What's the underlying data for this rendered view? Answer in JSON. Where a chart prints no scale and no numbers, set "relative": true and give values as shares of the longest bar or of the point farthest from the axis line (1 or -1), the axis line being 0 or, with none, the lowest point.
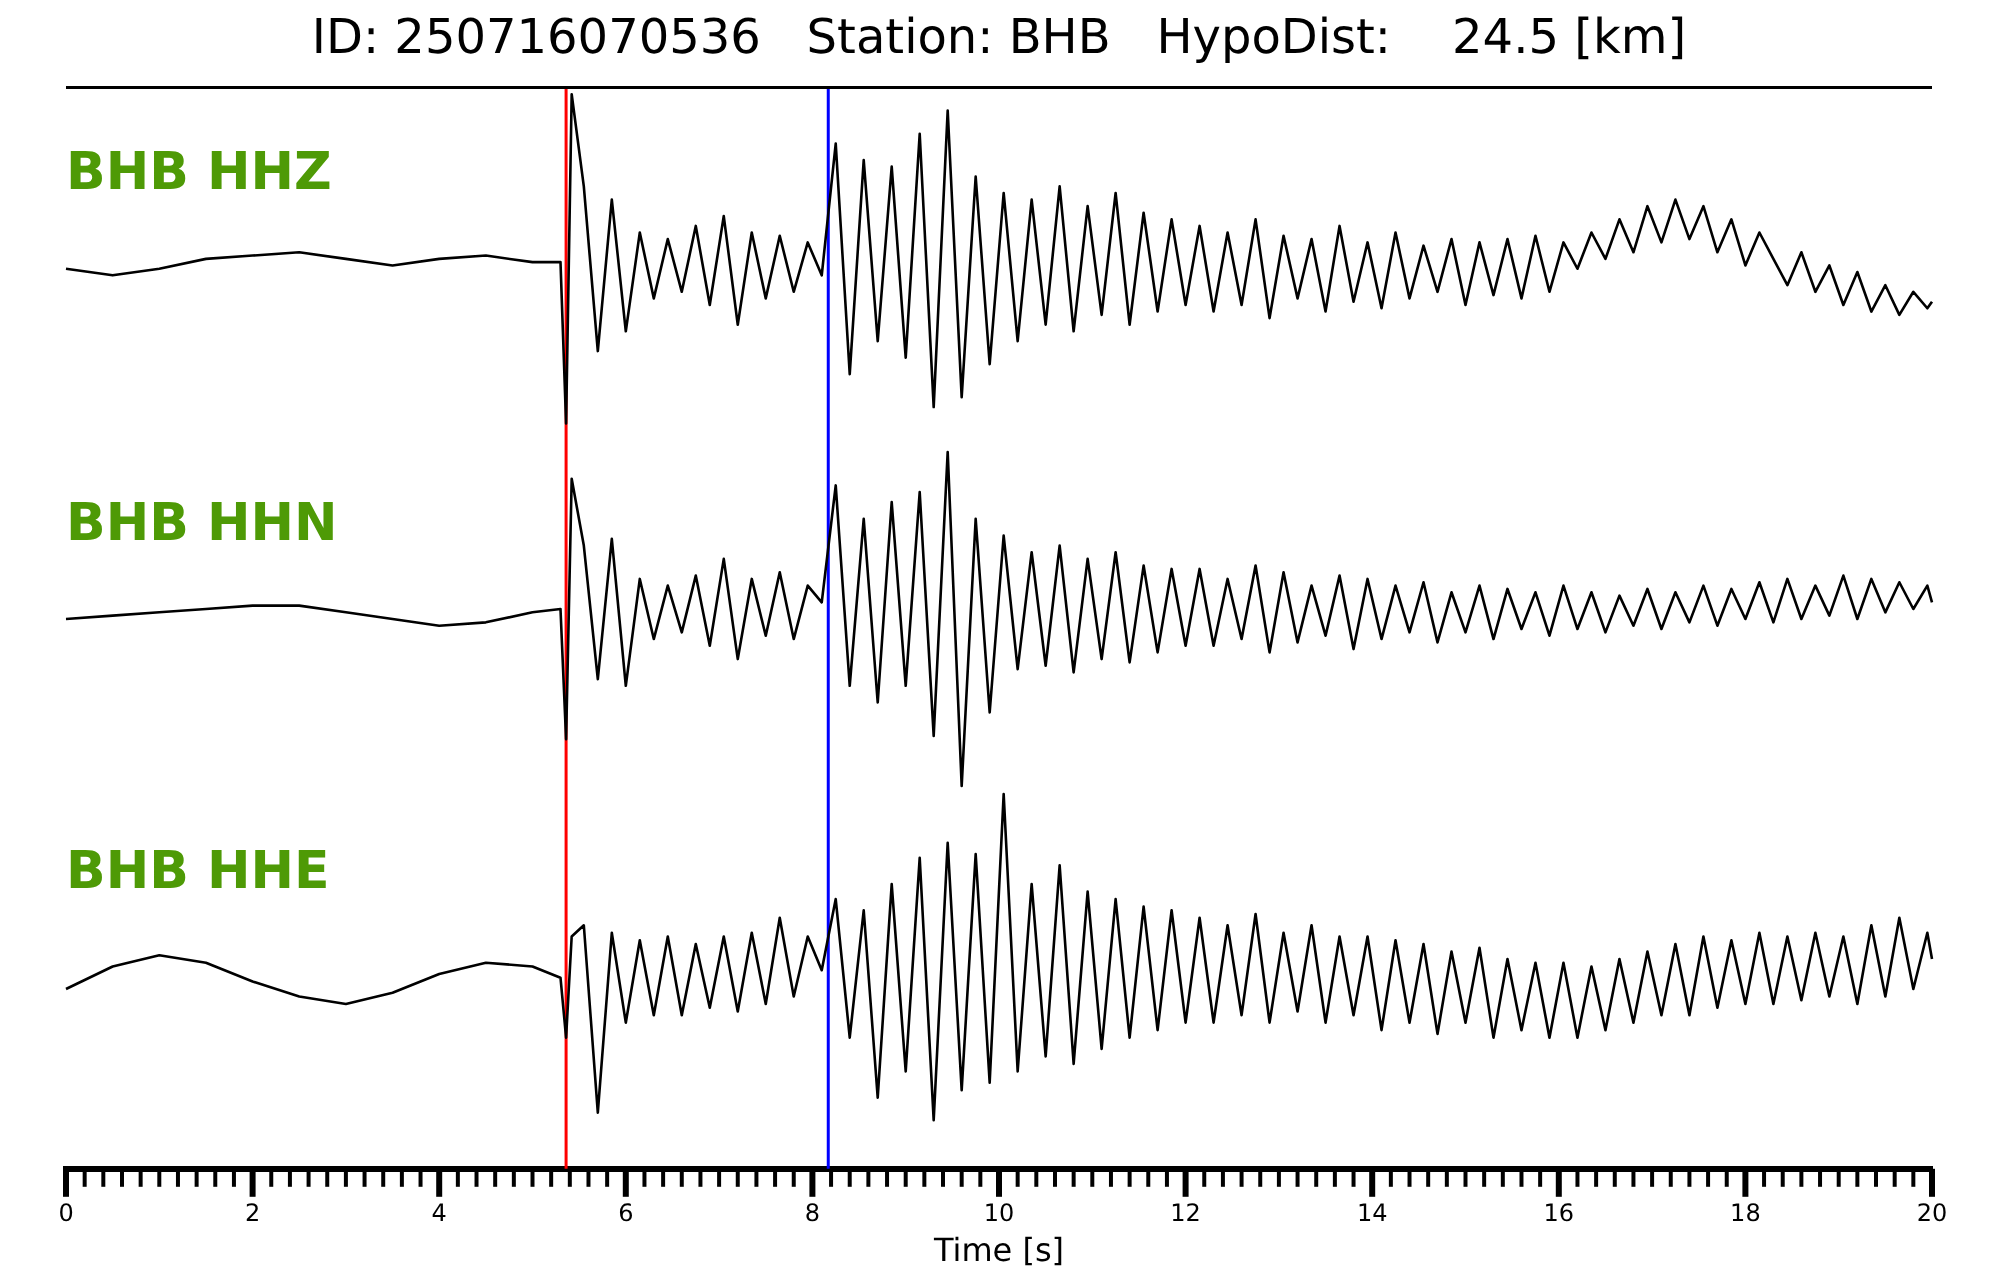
{
  "chart_data": [
    {
      "type": "line",
      "title": "ID: 250716070536   Station: BHB   HypoDist:    24.5 [km]",
      "relative": true,
      "xlim": [
        0,
        20
      ],
      "tick_labels": false,
      "x": [
        0,
        0.5,
        1,
        1.5,
        2,
        2.5,
        3,
        3.5,
        4,
        4.5,
        5,
        5.3,
        5.36,
        5.42,
        5.55,
        5.7,
        5.85,
        6,
        6.15,
        6.3,
        6.45,
        6.6,
        6.75,
        6.9,
        7.05,
        7.2,
        7.35,
        7.5,
        7.65,
        7.8,
        7.95,
        8.1,
        8.25,
        8.4,
        8.55,
        8.7,
        8.85,
        9,
        9.15,
        9.3,
        9.45,
        9.6,
        9.75,
        9.9,
        10.05,
        10.2,
        10.35,
        10.5,
        10.65,
        10.8,
        10.95,
        11.1,
        11.25,
        11.4,
        11.55,
        11.7,
        11.85,
        12,
        12.15,
        12.3,
        12.45,
        12.6,
        12.75,
        12.9,
        13.05,
        13.2,
        13.35,
        13.5,
        13.65,
        13.8,
        13.95,
        14.1,
        14.25,
        14.4,
        14.55,
        14.7,
        14.85,
        15,
        15.15,
        15.3,
        15.45,
        15.6,
        15.75,
        15.9,
        16.05,
        16.2,
        16.35,
        16.5,
        16.65,
        16.8,
        16.95,
        17.1,
        17.25,
        17.4,
        17.55,
        17.7,
        17.85,
        18,
        18.15,
        18.3,
        18.45,
        18.6,
        18.75,
        18.9,
        19.05,
        19.2,
        19.35,
        19.5,
        19.65,
        19.8,
        19.95,
        20
      ],
      "series": [
        {
          "name": "BHB HHZ",
          "color": "#000000",
          "values": [
            0.47,
            0.45,
            0.47,
            0.5,
            0.51,
            0.52,
            0.5,
            0.48,
            0.5,
            0.51,
            0.49,
            0.49,
            0.0,
            1.0,
            0.72,
            0.22,
            0.68,
            0.28,
            0.58,
            0.38,
            0.56,
            0.4,
            0.6,
            0.36,
            0.63,
            0.3,
            0.58,
            0.38,
            0.57,
            0.4,
            0.55,
            0.45,
            0.85,
            0.15,
            0.8,
            0.25,
            0.78,
            0.2,
            0.88,
            0.05,
            0.95,
            0.08,
            0.75,
            0.18,
            0.7,
            0.25,
            0.68,
            0.3,
            0.72,
            0.28,
            0.66,
            0.33,
            0.7,
            0.3,
            0.64,
            0.34,
            0.62,
            0.36,
            0.6,
            0.34,
            0.58,
            0.36,
            0.62,
            0.32,
            0.57,
            0.38,
            0.56,
            0.34,
            0.6,
            0.37,
            0.55,
            0.35,
            0.58,
            0.38,
            0.54,
            0.4,
            0.56,
            0.36,
            0.55,
            0.39,
            0.56,
            0.38,
            0.57,
            0.4,
            0.55,
            0.47,
            0.58,
            0.5,
            0.62,
            0.52,
            0.66,
            0.55,
            0.68,
            0.56,
            0.66,
            0.52,
            0.62,
            0.48,
            0.58,
            0.5,
            0.42,
            0.52,
            0.4,
            0.48,
            0.36,
            0.46,
            0.34,
            0.42,
            0.33,
            0.4,
            0.35,
            0.37
          ]
        }
      ],
      "ref_lines": [
        {
          "axis": "x",
          "value": 5.36,
          "color": "#ff0000"
        },
        {
          "axis": "x",
          "value": 8.17,
          "color": "#0000ff"
        }
      ]
    },
    {
      "type": "line",
      "relative": true,
      "xlim": [
        0,
        20
      ],
      "tick_labels": false,
      "x": [
        0,
        0.5,
        1,
        1.5,
        2,
        2.5,
        3,
        3.5,
        4,
        4.5,
        5,
        5.3,
        5.36,
        5.42,
        5.55,
        5.7,
        5.85,
        6,
        6.15,
        6.3,
        6.45,
        6.6,
        6.75,
        6.9,
        7.05,
        7.2,
        7.35,
        7.5,
        7.65,
        7.8,
        7.95,
        8.1,
        8.25,
        8.4,
        8.55,
        8.7,
        8.85,
        9,
        9.15,
        9.3,
        9.45,
        9.6,
        9.75,
        9.9,
        10.05,
        10.2,
        10.35,
        10.5,
        10.65,
        10.8,
        10.95,
        11.1,
        11.25,
        11.4,
        11.55,
        11.7,
        11.85,
        12,
        12.15,
        12.3,
        12.45,
        12.6,
        12.75,
        12.9,
        13.05,
        13.2,
        13.35,
        13.5,
        13.65,
        13.8,
        13.95,
        14.1,
        14.25,
        14.4,
        14.55,
        14.7,
        14.85,
        15,
        15.15,
        15.3,
        15.45,
        15.6,
        15.75,
        15.9,
        16.05,
        16.2,
        16.35,
        16.5,
        16.65,
        16.8,
        16.95,
        17.1,
        17.25,
        17.4,
        17.55,
        17.7,
        17.85,
        18,
        18.15,
        18.3,
        18.45,
        18.6,
        18.75,
        18.9,
        19.05,
        19.2,
        19.35,
        19.5,
        19.65,
        19.8,
        19.95,
        20
      ],
      "series": [
        {
          "name": "BHB HHN",
          "color": "#000000",
          "values": [
            0.5,
            0.51,
            0.52,
            0.53,
            0.54,
            0.54,
            0.52,
            0.5,
            0.48,
            0.49,
            0.52,
            0.53,
            0.14,
            0.92,
            0.72,
            0.32,
            0.74,
            0.3,
            0.62,
            0.44,
            0.6,
            0.46,
            0.63,
            0.42,
            0.68,
            0.38,
            0.62,
            0.45,
            0.64,
            0.44,
            0.6,
            0.55,
            0.9,
            0.3,
            0.8,
            0.25,
            0.85,
            0.3,
            0.88,
            0.15,
            1.0,
            0.0,
            0.8,
            0.22,
            0.75,
            0.35,
            0.7,
            0.36,
            0.72,
            0.34,
            0.68,
            0.38,
            0.7,
            0.37,
            0.66,
            0.4,
            0.65,
            0.42,
            0.65,
            0.42,
            0.62,
            0.44,
            0.66,
            0.4,
            0.64,
            0.43,
            0.6,
            0.45,
            0.63,
            0.41,
            0.62,
            0.44,
            0.6,
            0.46,
            0.61,
            0.43,
            0.58,
            0.46,
            0.6,
            0.44,
            0.59,
            0.47,
            0.58,
            0.45,
            0.6,
            0.47,
            0.58,
            0.46,
            0.57,
            0.48,
            0.59,
            0.47,
            0.58,
            0.49,
            0.6,
            0.48,
            0.59,
            0.5,
            0.61,
            0.49,
            0.62,
            0.5,
            0.6,
            0.51,
            0.63,
            0.5,
            0.62,
            0.52,
            0.61,
            0.53,
            0.6,
            0.55
          ]
        }
      ],
      "ref_lines": [
        {
          "axis": "x",
          "value": 5.36,
          "color": "#ff0000"
        },
        {
          "axis": "x",
          "value": 8.17,
          "color": "#0000ff"
        }
      ]
    },
    {
      "type": "line",
      "relative": true,
      "xlabel": "Time [s]",
      "xlim": [
        0,
        20
      ],
      "tick_labels": "x",
      "xticks": [
        0,
        {
          "value": 0.2,
          "label": null
        },
        {
          "value": 0.4,
          "label": null
        },
        {
          "value": 0.6,
          "label": null
        },
        {
          "value": 0.8,
          "label": null
        },
        {
          "value": 1,
          "label": null
        },
        {
          "value": 1.2,
          "label": null
        },
        {
          "value": 1.4,
          "label": null
        },
        {
          "value": 1.6,
          "label": null
        },
        {
          "value": 1.8,
          "label": null
        },
        2,
        {
          "value": 2.2,
          "label": null
        },
        {
          "value": 2.4,
          "label": null
        },
        {
          "value": 2.6,
          "label": null
        },
        {
          "value": 2.8,
          "label": null
        },
        {
          "value": 3,
          "label": null
        },
        {
          "value": 3.2,
          "label": null
        },
        {
          "value": 3.4,
          "label": null
        },
        {
          "value": 3.6,
          "label": null
        },
        {
          "value": 3.8,
          "label": null
        },
        4,
        {
          "value": 4.2,
          "label": null
        },
        {
          "value": 4.4,
          "label": null
        },
        {
          "value": 4.6,
          "label": null
        },
        {
          "value": 4.8,
          "label": null
        },
        {
          "value": 5,
          "label": null
        },
        {
          "value": 5.2,
          "label": null
        },
        {
          "value": 5.4,
          "label": null
        },
        {
          "value": 5.6,
          "label": null
        },
        {
          "value": 5.8,
          "label": null
        },
        6,
        {
          "value": 6.2,
          "label": null
        },
        {
          "value": 6.4,
          "label": null
        },
        {
          "value": 6.6,
          "label": null
        },
        {
          "value": 6.8,
          "label": null
        },
        {
          "value": 7,
          "label": null
        },
        {
          "value": 7.2,
          "label": null
        },
        {
          "value": 7.4,
          "label": null
        },
        {
          "value": 7.6,
          "label": null
        },
        {
          "value": 7.8,
          "label": null
        },
        8,
        {
          "value": 8.2,
          "label": null
        },
        {
          "value": 8.4,
          "label": null
        },
        {
          "value": 8.6,
          "label": null
        },
        {
          "value": 8.8,
          "label": null
        },
        {
          "value": 9,
          "label": null
        },
        {
          "value": 9.2,
          "label": null
        },
        {
          "value": 9.4,
          "label": null
        },
        {
          "value": 9.6,
          "label": null
        },
        {
          "value": 9.8,
          "label": null
        },
        10,
        {
          "value": 10.2,
          "label": null
        },
        {
          "value": 10.4,
          "label": null
        },
        {
          "value": 10.6,
          "label": null
        },
        {
          "value": 10.8,
          "label": null
        },
        {
          "value": 11,
          "label": null
        },
        {
          "value": 11.2,
          "label": null
        },
        {
          "value": 11.4,
          "label": null
        },
        {
          "value": 11.6,
          "label": null
        },
        {
          "value": 11.8,
          "label": null
        },
        12,
        {
          "value": 12.2,
          "label": null
        },
        {
          "value": 12.4,
          "label": null
        },
        {
          "value": 12.6,
          "label": null
        },
        {
          "value": 12.8,
          "label": null
        },
        {
          "value": 13,
          "label": null
        },
        {
          "value": 13.2,
          "label": null
        },
        {
          "value": 13.4,
          "label": null
        },
        {
          "value": 13.6,
          "label": null
        },
        {
          "value": 13.8,
          "label": null
        },
        14,
        {
          "value": 14.2,
          "label": null
        },
        {
          "value": 14.4,
          "label": null
        },
        {
          "value": 14.6,
          "label": null
        },
        {
          "value": 14.8,
          "label": null
        },
        {
          "value": 15,
          "label": null
        },
        {
          "value": 15.2,
          "label": null
        },
        {
          "value": 15.4,
          "label": null
        },
        {
          "value": 15.6,
          "label": null
        },
        {
          "value": 15.8,
          "label": null
        },
        16,
        {
          "value": 16.2,
          "label": null
        },
        {
          "value": 16.4,
          "label": null
        },
        {
          "value": 16.6,
          "label": null
        },
        {
          "value": 16.8,
          "label": null
        },
        {
          "value": 17,
          "label": null
        },
        {
          "value": 17.2,
          "label": null
        },
        {
          "value": 17.4,
          "label": null
        },
        {
          "value": 17.6,
          "label": null
        },
        {
          "value": 17.8,
          "label": null
        },
        18,
        {
          "value": 18.2,
          "label": null
        },
        {
          "value": 18.4,
          "label": null
        },
        {
          "value": 18.6,
          "label": null
        },
        {
          "value": 18.8,
          "label": null
        },
        {
          "value": 19,
          "label": null
        },
        {
          "value": 19.2,
          "label": null
        },
        {
          "value": 19.4,
          "label": null
        },
        {
          "value": 19.6,
          "label": null
        },
        {
          "value": 19.8,
          "label": null
        },
        20
      ],
      "x": [
        0,
        0.5,
        1,
        1.5,
        2,
        2.5,
        3,
        3.5,
        4,
        4.5,
        5,
        5.3,
        5.36,
        5.42,
        5.55,
        5.7,
        5.85,
        6,
        6.15,
        6.3,
        6.45,
        6.6,
        6.75,
        6.9,
        7.05,
        7.2,
        7.35,
        7.5,
        7.65,
        7.8,
        7.95,
        8.1,
        8.25,
        8.4,
        8.55,
        8.7,
        8.85,
        9,
        9.15,
        9.3,
        9.45,
        9.6,
        9.75,
        9.9,
        10.05,
        10.2,
        10.35,
        10.5,
        10.65,
        10.8,
        10.95,
        11.1,
        11.25,
        11.4,
        11.55,
        11.7,
        11.85,
        12,
        12.15,
        12.3,
        12.45,
        12.6,
        12.75,
        12.9,
        13.05,
        13.2,
        13.35,
        13.5,
        13.65,
        13.8,
        13.95,
        14.1,
        14.25,
        14.4,
        14.55,
        14.7,
        14.85,
        15,
        15.15,
        15.3,
        15.45,
        15.6,
        15.75,
        15.9,
        16.05,
        16.2,
        16.35,
        16.5,
        16.65,
        16.8,
        16.95,
        17.1,
        17.25,
        17.4,
        17.55,
        17.7,
        17.85,
        18,
        18.15,
        18.3,
        18.45,
        18.6,
        18.75,
        18.9,
        19.05,
        19.2,
        19.35,
        19.5,
        19.65,
        19.8,
        19.95,
        20
      ],
      "series": [
        {
          "name": "BHB HHE",
          "color": "#000000",
          "values": [
            0.48,
            0.54,
            0.57,
            0.55,
            0.5,
            0.46,
            0.44,
            0.47,
            0.52,
            0.55,
            0.54,
            0.51,
            0.35,
            0.62,
            0.65,
            0.15,
            0.63,
            0.39,
            0.61,
            0.41,
            0.62,
            0.41,
            0.6,
            0.43,
            0.62,
            0.42,
            0.63,
            0.44,
            0.67,
            0.46,
            0.62,
            0.53,
            0.72,
            0.35,
            0.69,
            0.19,
            0.76,
            0.26,
            0.83,
            0.13,
            0.87,
            0.21,
            0.84,
            0.23,
            1.0,
            0.26,
            0.76,
            0.3,
            0.81,
            0.28,
            0.74,
            0.32,
            0.72,
            0.35,
            0.7,
            0.37,
            0.69,
            0.39,
            0.67,
            0.39,
            0.65,
            0.41,
            0.68,
            0.39,
            0.63,
            0.42,
            0.65,
            0.39,
            0.62,
            0.41,
            0.62,
            0.37,
            0.61,
            0.39,
            0.6,
            0.36,
            0.58,
            0.39,
            0.59,
            0.35,
            0.56,
            0.37,
            0.55,
            0.35,
            0.55,
            0.35,
            0.54,
            0.37,
            0.56,
            0.39,
            0.58,
            0.41,
            0.6,
            0.41,
            0.62,
            0.43,
            0.61,
            0.44,
            0.63,
            0.44,
            0.62,
            0.45,
            0.63,
            0.46,
            0.62,
            0.44,
            0.65,
            0.46,
            0.67,
            0.48,
            0.63,
            0.56
          ]
        }
      ],
      "ref_lines": [
        {
          "axis": "x",
          "value": 5.36,
          "color": "#ff0000"
        },
        {
          "axis": "x",
          "value": 8.17,
          "color": "#0000ff"
        }
      ]
    }
  ]
}
